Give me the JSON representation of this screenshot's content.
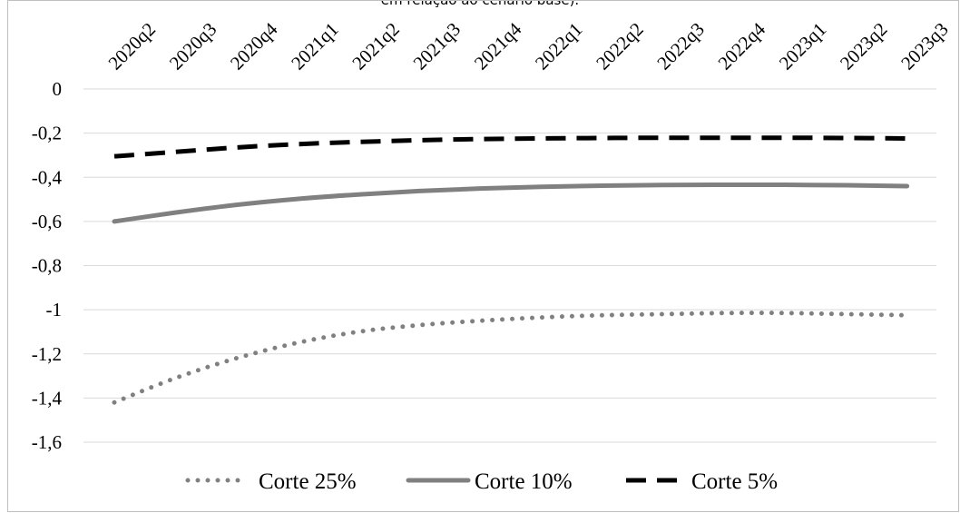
{
  "caption_partial": "em relação ao cenário base).",
  "chart_data": {
    "type": "line",
    "x": [
      "2020q2",
      "2020q3",
      "2020q4",
      "2021q1",
      "2021q2",
      "2021q3",
      "2021q4",
      "2022q1",
      "2022q2",
      "2022q3",
      "2022q4",
      "2023q1",
      "2023q2",
      "2023q3"
    ],
    "yticks": [
      "0",
      "-0,2",
      "-0,4",
      "-0,6",
      "-0,8",
      "-1",
      "-1,2",
      "-1,4",
      "-1,6"
    ],
    "ylim": [
      -1.6,
      0
    ],
    "grid": true,
    "legend_position": "bottom",
    "series": [
      {
        "name": "Corte 25%",
        "style": "dotted",
        "color": "#808080",
        "values": [
          -1.42,
          -1.31,
          -1.22,
          -1.15,
          -1.1,
          -1.07,
          -1.05,
          -1.035,
          -1.025,
          -1.02,
          -1.015,
          -1.015,
          -1.02,
          -1.025
        ]
      },
      {
        "name": "Corte 10%",
        "style": "solid",
        "color": "#808080",
        "values": [
          -0.6,
          -0.56,
          -0.525,
          -0.498,
          -0.478,
          -0.462,
          -0.451,
          -0.443,
          -0.438,
          -0.435,
          -0.434,
          -0.434,
          -0.436,
          -0.44
        ]
      },
      {
        "name": "Corte 5%",
        "style": "dashed",
        "color": "#000000",
        "values": [
          -0.305,
          -0.285,
          -0.265,
          -0.25,
          -0.24,
          -0.232,
          -0.227,
          -0.224,
          -0.222,
          -0.221,
          -0.221,
          -0.221,
          -0.222,
          -0.224
        ]
      }
    ]
  }
}
